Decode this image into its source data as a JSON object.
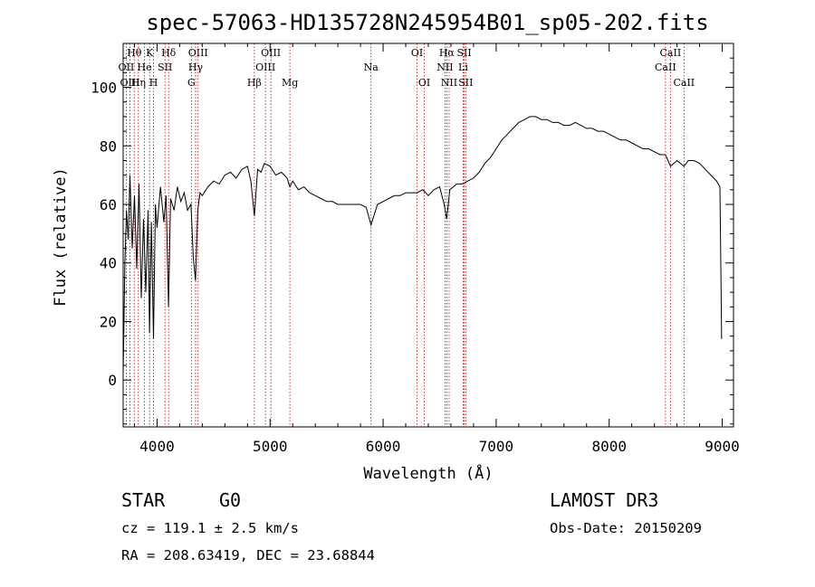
{
  "chart_data": {
    "type": "line",
    "title": "spec-57063-HD135728N245954B01_sp05-202.fits",
    "xlabel": "Wavelength (Å)",
    "ylabel": "Flux (relative)",
    "xlim": [
      3700,
      9100
    ],
    "ylim": [
      -16,
      115
    ],
    "xticks": [
      4000,
      5000,
      6000,
      7000,
      8000,
      9000
    ],
    "yticks": [
      0,
      20,
      40,
      60,
      80,
      100
    ],
    "grid": false,
    "series": [
      {
        "name": "spectrum",
        "x": [
          3700,
          3715,
          3730,
          3745,
          3760,
          3780,
          3800,
          3820,
          3840,
          3860,
          3880,
          3900,
          3920,
          3933,
          3950,
          3968,
          3985,
          4000,
          4030,
          4060,
          4080,
          4101,
          4120,
          4150,
          4180,
          4210,
          4240,
          4270,
          4300,
          4320,
          4340,
          4360,
          4380,
          4400,
          4450,
          4500,
          4550,
          4600,
          4650,
          4700,
          4750,
          4800,
          4830,
          4861,
          4890,
          4920,
          4950,
          5000,
          5050,
          5100,
          5150,
          5175,
          5200,
          5250,
          5300,
          5350,
          5400,
          5450,
          5500,
          5550,
          5600,
          5650,
          5700,
          5750,
          5800,
          5850,
          5893,
          5950,
          6000,
          6050,
          6100,
          6150,
          6200,
          6250,
          6300,
          6350,
          6400,
          6450,
          6500,
          6540,
          6563,
          6590,
          6620,
          6650,
          6700,
          6750,
          6800,
          6850,
          6900,
          6950,
          7000,
          7050,
          7100,
          7150,
          7200,
          7250,
          7300,
          7350,
          7400,
          7450,
          7500,
          7550,
          7600,
          7650,
          7700,
          7750,
          7800,
          7850,
          7900,
          7950,
          8000,
          8050,
          8100,
          8150,
          8200,
          8250,
          8300,
          8350,
          8400,
          8450,
          8498,
          8542,
          8600,
          8662,
          8700,
          8750,
          8800,
          8850,
          8900,
          8950,
          8980,
          8995
        ],
        "values": [
          2,
          40,
          58,
          48,
          70,
          45,
          63,
          38,
          67,
          28,
          55,
          30,
          58,
          16,
          54,
          14,
          60,
          52,
          66,
          54,
          63,
          25,
          62,
          58,
          66,
          61,
          64,
          58,
          60,
          42,
          34,
          58,
          64,
          63,
          66,
          68,
          67,
          70,
          71,
          69,
          72,
          73,
          68,
          56,
          72,
          71,
          74,
          73,
          70,
          71,
          69,
          66,
          68,
          65,
          66,
          64,
          63,
          62,
          61,
          61,
          60,
          60,
          60,
          60,
          60,
          59,
          53,
          60,
          61,
          62,
          63,
          63,
          64,
          64,
          64,
          65,
          63,
          65,
          66,
          60,
          55,
          65,
          66,
          67,
          67,
          68,
          69,
          71,
          74,
          76,
          79,
          82,
          84,
          86,
          88,
          89,
          90,
          90,
          89,
          89,
          88,
          88,
          87,
          87,
          88,
          87,
          86,
          86,
          85,
          85,
          84,
          83,
          82,
          82,
          81,
          80,
          79,
          79,
          78,
          77,
          77,
          73,
          75,
          73,
          75,
          75,
          74,
          72,
          70,
          68,
          66,
          14
        ]
      }
    ],
    "line_markers": [
      {
        "label": "Hθ",
        "x": 3798,
        "row": 1
      },
      {
        "label": "OII",
        "x": 3727,
        "row": 2
      },
      {
        "label": "OIII",
        "x": 3760,
        "row": 3
      },
      {
        "label": "K",
        "x": 3934,
        "row": 1
      },
      {
        "label": "He",
        "x": 3889,
        "row": 2
      },
      {
        "label": "Hη",
        "x": 3835,
        "row": 3
      },
      {
        "label": "Hδ",
        "x": 4102,
        "row": 1
      },
      {
        "label": "SII",
        "x": 4070,
        "row": 2
      },
      {
        "label": "H",
        "x": 3969,
        "row": 3
      },
      {
        "label": "OIII",
        "x": 4363,
        "row": 1
      },
      {
        "label": "Hγ",
        "x": 4341,
        "row": 2
      },
      {
        "label": "G",
        "x": 4304,
        "row": 3
      },
      {
        "label": "OIII",
        "x": 5007,
        "row": 1
      },
      {
        "label": "OIII",
        "x": 4959,
        "row": 2
      },
      {
        "label": "Hβ",
        "x": 4861,
        "row": 3
      },
      {
        "label": "Mg",
        "x": 5175,
        "row": 3
      },
      {
        "label": "Na",
        "x": 5893,
        "row": 2
      },
      {
        "label": "OI",
        "x": 6300,
        "row": 1
      },
      {
        "label": "OI",
        "x": 6364,
        "row": 3
      },
      {
        "label": "Hα",
        "x": 6563,
        "row": 1
      },
      {
        "label": "NII",
        "x": 6548,
        "row": 2
      },
      {
        "label": "NII",
        "x": 6584,
        "row": 3
      },
      {
        "label": "SII",
        "x": 6717,
        "row": 1
      },
      {
        "label": "Li",
        "x": 6708,
        "row": 2
      },
      {
        "label": "SII",
        "x": 6731,
        "row": 3
      },
      {
        "label": "CaII",
        "x": 8542,
        "row": 1
      },
      {
        "label": "CaII",
        "x": 8498,
        "row": 2
      },
      {
        "label": "CaII",
        "x": 8662,
        "row": 3
      }
    ]
  },
  "info": {
    "class_label": "STAR",
    "subclass": "G0",
    "cz_line": "cz = 119.1 ± 2.5 km/s",
    "coords_line": "RA = 208.63419, DEC =  23.68844",
    "survey": "LAMOST DR3",
    "obs_date": "Obs-Date: 20150209"
  }
}
